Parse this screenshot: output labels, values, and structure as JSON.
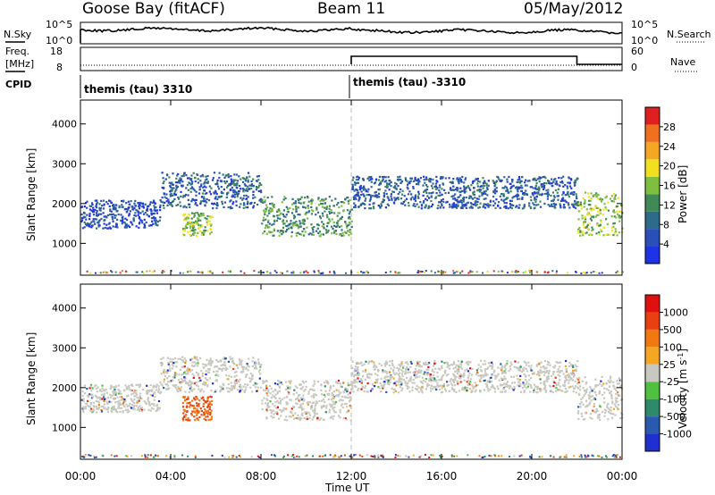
{
  "header": {
    "station": "Goose Bay (fitACF)",
    "beam": "Beam 11",
    "date": "05/May/2012"
  },
  "noise_panel": {
    "left_label": "N.Sky",
    "right_label": "N.Search",
    "left_ticks": [
      "10^5",
      "10^0"
    ],
    "right_ticks": [
      "10^5",
      "10^0"
    ]
  },
  "freq_panel": {
    "left_label_lines": [
      "Freq.",
      "[MHz]"
    ],
    "right_label": "Nave",
    "left_ticks": [
      "18",
      "8"
    ],
    "right_ticks": [
      "60",
      "0"
    ]
  },
  "cpid_panel": {
    "label": "CPID",
    "segments": [
      {
        "text": "themis (tau) 3310",
        "start_hour": 0
      },
      {
        "text": "themis (tau) -3310",
        "start_hour": 12
      }
    ]
  },
  "power_panel": {
    "ylabel": "Slant Range [km]",
    "colorbar_label": "Power [dB]",
    "colorbar_ticks": [
      "28",
      "24",
      "20",
      "16",
      "12",
      "8",
      "4"
    ],
    "colors": [
      "#1e32e6",
      "#2a4fb8",
      "#2e6a8a",
      "#3f8a55",
      "#7fbf3f",
      "#f0e020",
      "#f5a623",
      "#f07020",
      "#e02020"
    ]
  },
  "velocity_panel": {
    "ylabel": "Slant Range [km]",
    "colorbar_label": "Velocity [m s^-1]",
    "colorbar_ticks": [
      "1000",
      "500",
      "100",
      "25",
      "-25",
      "-100",
      "-500",
      "-1000"
    ],
    "colors": [
      "#2030d0",
      "#2a5ab0",
      "#2e8a6a",
      "#50c040",
      "#c8c8c0",
      "#f5a623",
      "#f07a10",
      "#e84010",
      "#e01010"
    ]
  },
  "xaxis": {
    "label": "Time UT",
    "ticks": [
      "00:00",
      "04:00",
      "08:00",
      "12:00",
      "16:00",
      "20:00",
      "00:00"
    ]
  },
  "chart_data": {
    "type": "heatmap",
    "x_unit": "hour UT",
    "xlim": [
      0,
      24
    ],
    "ylim": [
      200,
      4600
    ],
    "yticks": [
      1000,
      2000,
      3000,
      4000
    ],
    "cpid_change_hour": 12,
    "nave_step": {
      "start_hour": 12,
      "end_hour": 22,
      "value_high": 40,
      "value_low": 10
    },
    "scatter_regions": [
      {
        "t0": 0,
        "t1": 3.5,
        "r0": 1400,
        "r1": 2100,
        "power_db": 8
      },
      {
        "t0": 3.5,
        "t1": 8,
        "r0": 1900,
        "r1": 2800,
        "power_db": 10
      },
      {
        "t0": 8,
        "t1": 12,
        "r0": 1200,
        "r1": 2200,
        "power_db": 16
      },
      {
        "t0": 4.5,
        "t1": 5.8,
        "r0": 1200,
        "r1": 1800,
        "power_db": 20
      },
      {
        "t0": 12,
        "t1": 22,
        "r0": 1900,
        "r1": 2700,
        "power_db": 10
      },
      {
        "t0": 22,
        "t1": 24,
        "r0": 1200,
        "r1": 2300,
        "power_db": 20
      }
    ]
  }
}
